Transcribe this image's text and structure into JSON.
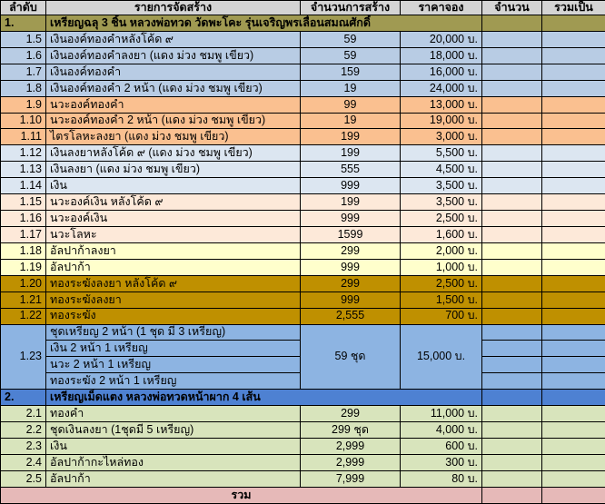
{
  "columns": [
    "ลำดับ",
    "รายการจัดสร้าง",
    "จำนวนการสร้าง",
    "ราคาจอง",
    "จำนวน",
    "รวมเป็น"
  ],
  "currency_suffix": "บ.",
  "footer_label": "รวม",
  "colors": {
    "header_bg": "#D4D4D4",
    "olive": "#A09A52",
    "blue1": "#B8CCE4",
    "peach1": "#FAC090",
    "blue2": "#DCE6F1",
    "peach2": "#FDE9D9",
    "yellow": "#FFFFCC",
    "gold": "#BF9000",
    "blue3": "#8DB4E2",
    "blueheader": "#4E81D2",
    "green": "#D8E4BC",
    "pink": "#E6B9B8",
    "border": "#000000"
  },
  "rows": [
    {
      "kind": "section",
      "no": "1.",
      "name": "เหรียญฉลุ 3 ชิ้น หลวงพ่อทวด วัดพะโคะ รุ่นเจริญพรเลื่อนสมณศักดิ์",
      "style": "olive"
    },
    {
      "kind": "item",
      "no": "1.5",
      "name": "เงินองค์ทองคำหลังโค้ด ๙",
      "qty": "59",
      "price": "20,000 บ.",
      "style": "blue1"
    },
    {
      "kind": "item",
      "no": "1.6",
      "name": "เงินองค์ทองคำลงยา (แดง ม่วง ชมพู เขียว)",
      "qty": "59",
      "price": "18,000 บ.",
      "style": "blue1"
    },
    {
      "kind": "item",
      "no": "1.7",
      "name": "เงินองค์ทองคำ",
      "qty": "159",
      "price": "16,000 บ.",
      "style": "blue1"
    },
    {
      "kind": "item",
      "no": "1.8",
      "name": "เงินองค์ทองคำ 2 หน้า (แดง ม่วง ชมพู เขียว)",
      "qty": "19",
      "price": "24,000 บ.",
      "style": "blue1"
    },
    {
      "kind": "item",
      "no": "1.9",
      "name": "นวะองค์ทองคำ",
      "qty": "99",
      "price": "13,000 บ.",
      "style": "peach1"
    },
    {
      "kind": "item",
      "no": "1.10",
      "name": "นวะองค์ทองคำ 2 หน้า (แดง ม่วง ชมพู เขียว)",
      "qty": "19",
      "price": "19,000 บ.",
      "style": "peach1"
    },
    {
      "kind": "item",
      "no": "1.11",
      "name": "ไตรโลหะลงยา (แดง ม่วง ชมพู เขียว)",
      "qty": "199",
      "price": "3,000 บ.",
      "style": "peach1"
    },
    {
      "kind": "item",
      "no": "1.12",
      "name": "เงินลงยาหลังโค้ด ๙ (แดง ม่วง ชมพู เขียว)",
      "qty": "199",
      "price": "5,500 บ.",
      "style": "blue2"
    },
    {
      "kind": "item",
      "no": "1.13",
      "name": "เงินลงยา (แดง ม่วง ชมพู เขียว)",
      "qty": "555",
      "price": "4,500 บ.",
      "style": "blue2"
    },
    {
      "kind": "item",
      "no": "1.14",
      "name": "เงิน",
      "qty": "999",
      "price": "3,500 บ.",
      "style": "blue2"
    },
    {
      "kind": "item",
      "no": "1.15",
      "name": "นวะองค์เงิน หลังโค้ด ๙",
      "qty": "199",
      "price": "3,500 บ.",
      "style": "peach2"
    },
    {
      "kind": "item",
      "no": "1.16",
      "name": "นวะองค์เงิน",
      "qty": "999",
      "price": "2,500 บ.",
      "style": "peach2"
    },
    {
      "kind": "item",
      "no": "1.17",
      "name": "นวะโลหะ",
      "qty": "1599",
      "price": "1,600 บ.",
      "style": "peach2"
    },
    {
      "kind": "item",
      "no": "1.18",
      "name": "อัลปาก้าลงยา",
      "qty": "299",
      "price": "2,000 บ.",
      "style": "yellow"
    },
    {
      "kind": "item",
      "no": "1.19",
      "name": "อัลปาก้า",
      "qty": "999",
      "price": "1,000 บ.",
      "style": "yellow"
    },
    {
      "kind": "item",
      "no": "1.20",
      "name": "ทองระฆังลงยา หลังโค้ด ๙",
      "qty": "299",
      "price": "2,500 บ.",
      "style": "gold"
    },
    {
      "kind": "item",
      "no": "1.21",
      "name": "ทองระฆังลงยา",
      "qty": "999",
      "price": "1,500 บ.",
      "style": "gold"
    },
    {
      "kind": "item",
      "no": "1.22",
      "name": "ทองระฆัง",
      "qty": "2,555",
      "price": "700 บ.",
      "style": "gold"
    },
    {
      "kind": "group",
      "no": "1.23",
      "qty": "59 ชุด",
      "price": "15,000 บ.",
      "style": "blue3",
      "items": [
        "ชุดเหรียญ 2 หน้า (1 ชุด มี 3 เหรียญ)",
        "เงิน 2 หน้า 1 เหรียญ",
        "นวะ 2 หน้า 1 เหรียญ",
        "ทองระฆัง 2 หน้า 1 เหรียญ"
      ]
    },
    {
      "kind": "section",
      "no": "2.",
      "name": "เหรียญเม็ดแตง หลวงพ่อทวดหน้าผาก 4 เส้น",
      "style": "blueheader"
    },
    {
      "kind": "item",
      "no": "2.1",
      "name": "ทองคำ",
      "qty": "299",
      "price": "11,000 บ.",
      "style": "green"
    },
    {
      "kind": "item",
      "no": "2.2",
      "name": "ชุดเงินลงยา (1ชุดมี 5 เหรียญ)",
      "qty": "299 ชุด",
      "price": "4,000 บ.",
      "style": "green"
    },
    {
      "kind": "item",
      "no": "2.3",
      "name": "เงิน",
      "qty": "2,999",
      "price": "600 บ.",
      "style": "green"
    },
    {
      "kind": "item",
      "no": "2.4",
      "name": "อัลปาก้ากะไหล่ทอง",
      "qty": "2,999",
      "price": "300 บ.",
      "style": "green"
    },
    {
      "kind": "item",
      "no": "2.5",
      "name": "อัลปาก้า",
      "qty": "7,999",
      "price": "80 บ.",
      "style": "green"
    },
    {
      "kind": "footer",
      "style": "pink"
    }
  ]
}
